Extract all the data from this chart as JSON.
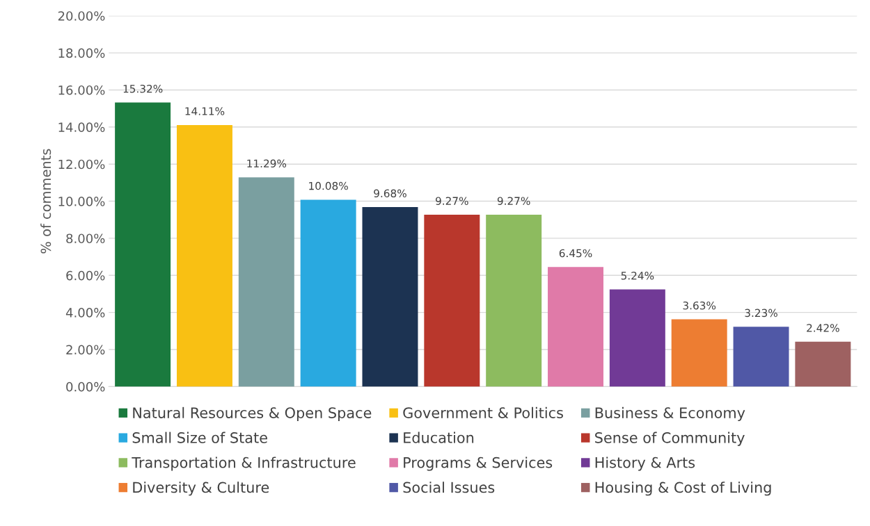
{
  "chart_data": {
    "type": "bar",
    "ylabel": "% of comments",
    "categories": [
      null,
      null,
      null,
      null,
      null,
      null,
      null,
      null,
      null,
      null,
      null,
      null
    ],
    "series": [
      {
        "name": "Natural Resources & Open Space",
        "color": "#1a7a3e",
        "values": [
          15.32,
          null,
          null,
          null,
          null,
          null,
          null,
          null,
          null,
          null,
          null,
          null
        ],
        "value_labels": [
          "15.32%",
          null,
          null,
          null,
          null,
          null,
          null,
          null,
          null,
          null,
          null,
          null
        ]
      },
      {
        "name": "Government & Politics",
        "color": "#f9c013",
        "values": [
          null,
          14.11,
          null,
          null,
          null,
          null,
          null,
          null,
          null,
          null,
          null,
          null
        ],
        "value_labels": [
          null,
          "14.11%",
          null,
          null,
          null,
          null,
          null,
          null,
          null,
          null,
          null,
          null
        ]
      },
      {
        "name": "Business & Economy",
        "color": "#7a9fa0",
        "values": [
          null,
          null,
          11.29,
          null,
          null,
          null,
          null,
          null,
          null,
          null,
          null,
          null
        ],
        "value_labels": [
          null,
          null,
          "11.29%",
          null,
          null,
          null,
          null,
          null,
          null,
          null,
          null,
          null
        ]
      },
      {
        "name": "Small Size of State",
        "color": "#29a9e0",
        "values": [
          null,
          null,
          null,
          10.08,
          null,
          null,
          null,
          null,
          null,
          null,
          null,
          null
        ],
        "value_labels": [
          null,
          null,
          null,
          "10.08%",
          null,
          null,
          null,
          null,
          null,
          null,
          null,
          null
        ]
      },
      {
        "name": "Education",
        "color": "#1c3352",
        "values": [
          null,
          null,
          null,
          null,
          9.68,
          null,
          null,
          null,
          null,
          null,
          null,
          null
        ],
        "value_labels": [
          null,
          null,
          null,
          null,
          "9.68%",
          null,
          null,
          null,
          null,
          null,
          null,
          null
        ]
      },
      {
        "name": "Sense of Community",
        "color": "#b9372c",
        "values": [
          null,
          null,
          null,
          null,
          null,
          9.27,
          null,
          null,
          null,
          null,
          null,
          null
        ],
        "value_labels": [
          null,
          null,
          null,
          null,
          null,
          "9.27%",
          null,
          null,
          null,
          null,
          null,
          null
        ]
      },
      {
        "name": "Transportation & Infrastructure",
        "color": "#8dbb5f",
        "values": [
          null,
          null,
          null,
          null,
          null,
          null,
          9.27,
          null,
          null,
          null,
          null,
          null
        ],
        "value_labels": [
          null,
          null,
          null,
          null,
          null,
          null,
          "9.27%",
          null,
          null,
          null,
          null,
          null
        ]
      },
      {
        "name": "Programs & Services",
        "color": "#e07aa8",
        "values": [
          null,
          null,
          null,
          null,
          null,
          null,
          null,
          6.45,
          null,
          null,
          null,
          null
        ],
        "value_labels": [
          null,
          null,
          null,
          null,
          null,
          null,
          null,
          "6.45%",
          null,
          null,
          null,
          null
        ]
      },
      {
        "name": "History & Arts",
        "color": "#713a96",
        "values": [
          null,
          null,
          null,
          null,
          null,
          null,
          null,
          null,
          5.24,
          null,
          null,
          null
        ],
        "value_labels": [
          null,
          null,
          null,
          null,
          null,
          null,
          null,
          null,
          "5.24%",
          null,
          null,
          null
        ]
      },
      {
        "name": "Diversity & Culture",
        "color": "#ed7d32",
        "values": [
          null,
          null,
          null,
          null,
          null,
          null,
          null,
          null,
          null,
          3.63,
          null,
          null
        ],
        "value_labels": [
          null,
          null,
          null,
          null,
          null,
          null,
          null,
          null,
          null,
          "3.63%",
          null,
          null
        ]
      },
      {
        "name": "Social Issues",
        "color": "#5058a6",
        "values": [
          null,
          null,
          null,
          null,
          null,
          null,
          null,
          null,
          null,
          null,
          3.23,
          null
        ],
        "value_labels": [
          null,
          null,
          null,
          null,
          null,
          null,
          null,
          null,
          null,
          null,
          "3.23%",
          null
        ]
      },
      {
        "name": "Housing & Cost of Living",
        "color": "#9e6161",
        "values": [
          null,
          null,
          null,
          null,
          null,
          null,
          null,
          null,
          null,
          null,
          null,
          2.42
        ],
        "value_labels": [
          null,
          null,
          null,
          null,
          null,
          null,
          null,
          null,
          null,
          null,
          null,
          "2.42%"
        ]
      }
    ],
    "ylim": [
      0,
      20
    ],
    "yticks": [
      {
        "value": 0,
        "label": "0.00%"
      },
      {
        "value": 2,
        "label": "2.00%"
      },
      {
        "value": 4,
        "label": "4.00%"
      },
      {
        "value": 6,
        "label": "6.00%"
      },
      {
        "value": 8,
        "label": "8.00%"
      },
      {
        "value": 10,
        "label": "10.00%"
      },
      {
        "value": 12,
        "label": "12.00%"
      },
      {
        "value": 14,
        "label": "14.00%"
      },
      {
        "value": 16,
        "label": "16.00%"
      },
      {
        "value": 18,
        "label": "18.00%"
      },
      {
        "value": 20,
        "label": "20.00%"
      }
    ],
    "grid": "y",
    "legend": "bottom",
    "tick_labels": "y"
  }
}
